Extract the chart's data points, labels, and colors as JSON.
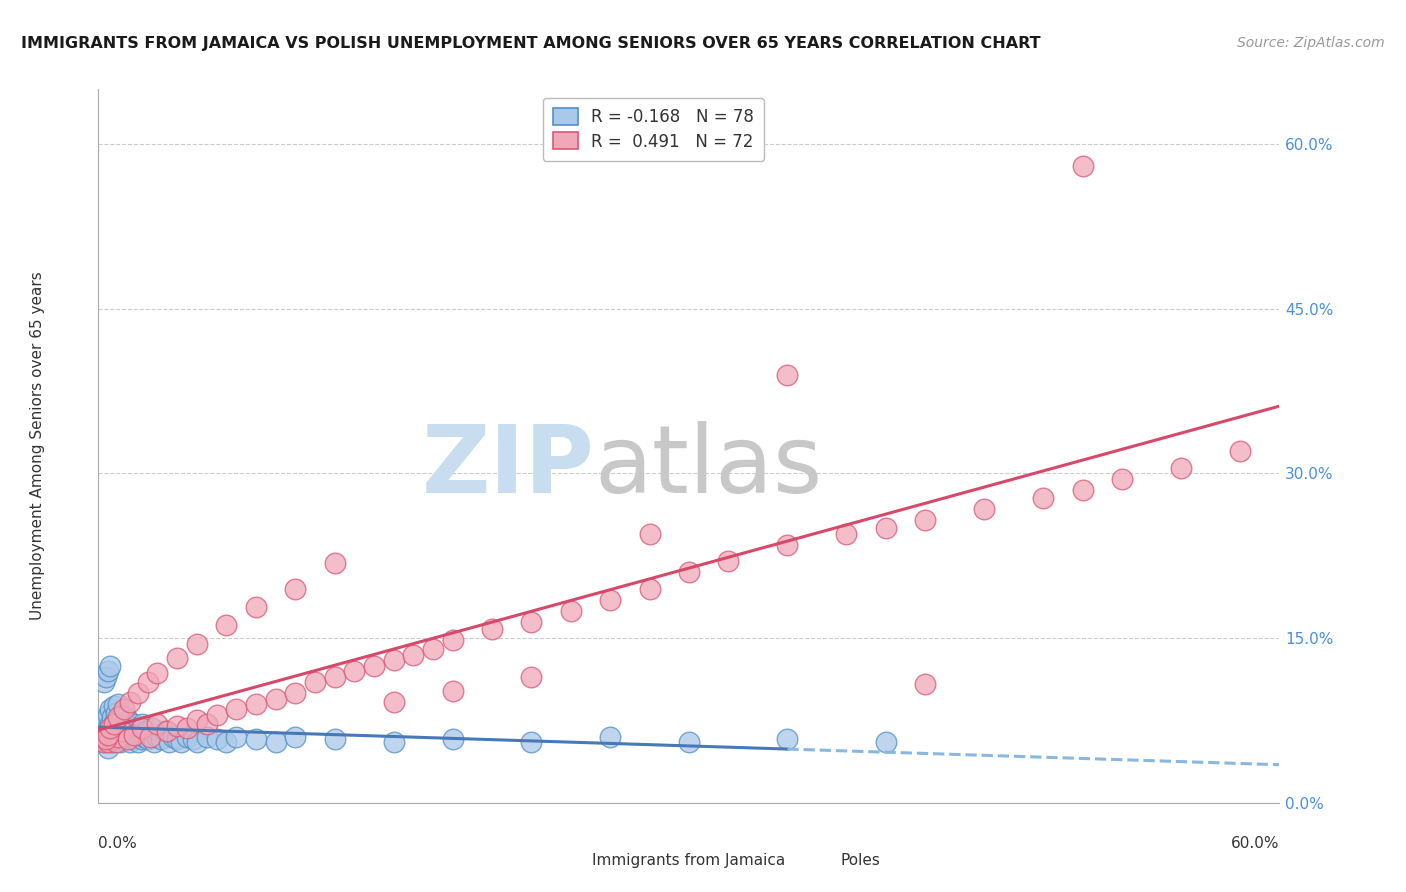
{
  "title": "IMMIGRANTS FROM JAMAICA VS POLISH UNEMPLOYMENT AMONG SENIORS OVER 65 YEARS CORRELATION CHART",
  "source": "Source: ZipAtlas.com",
  "ylabel": "Unemployment Among Seniors over 65 years",
  "legend_label1": "Immigrants from Jamaica",
  "legend_label2": "Poles",
  "r1": -0.168,
  "n1": 78,
  "r2": 0.491,
  "n2": 72,
  "color_blue_fill": "#aac8e8",
  "color_blue_edge": "#5090c8",
  "color_pink_fill": "#f0a8b8",
  "color_pink_edge": "#d85878",
  "color_line_blue_solid": "#4878b8",
  "color_line_blue_dash": "#88b8e0",
  "color_line_pink": "#d84868",
  "xlim": [
    0.0,
    0.6
  ],
  "ylim": [
    0.0,
    0.65
  ],
  "ytick_values": [
    0.0,
    0.15,
    0.3,
    0.45,
    0.6
  ],
  "ytick_labels": [
    "0.0%",
    "15.0%",
    "30.0%",
    "45.0%",
    "60.0%"
  ],
  "blue_x": [
    0.002,
    0.003,
    0.004,
    0.004,
    0.005,
    0.005,
    0.005,
    0.006,
    0.006,
    0.006,
    0.007,
    0.007,
    0.007,
    0.008,
    0.008,
    0.008,
    0.009,
    0.009,
    0.009,
    0.01,
    0.01,
    0.01,
    0.011,
    0.011,
    0.012,
    0.012,
    0.013,
    0.013,
    0.014,
    0.014,
    0.015,
    0.015,
    0.016,
    0.016,
    0.017,
    0.018,
    0.018,
    0.019,
    0.02,
    0.02,
    0.021,
    0.022,
    0.022,
    0.023,
    0.024,
    0.025,
    0.026,
    0.027,
    0.028,
    0.03,
    0.032,
    0.034,
    0.036,
    0.038,
    0.04,
    0.042,
    0.045,
    0.048,
    0.05,
    0.055,
    0.06,
    0.065,
    0.07,
    0.08,
    0.09,
    0.1,
    0.12,
    0.15,
    0.18,
    0.22,
    0.26,
    0.3,
    0.35,
    0.4,
    0.003,
    0.004,
    0.005,
    0.006
  ],
  "blue_y": [
    0.055,
    0.065,
    0.06,
    0.075,
    0.05,
    0.068,
    0.08,
    0.058,
    0.072,
    0.085,
    0.062,
    0.055,
    0.078,
    0.06,
    0.073,
    0.088,
    0.058,
    0.068,
    0.082,
    0.063,
    0.075,
    0.09,
    0.055,
    0.07,
    0.062,
    0.08,
    0.058,
    0.072,
    0.065,
    0.078,
    0.06,
    0.075,
    0.055,
    0.07,
    0.065,
    0.058,
    0.072,
    0.062,
    0.055,
    0.068,
    0.063,
    0.058,
    0.072,
    0.06,
    0.065,
    0.058,
    0.062,
    0.068,
    0.055,
    0.06,
    0.058,
    0.065,
    0.055,
    0.06,
    0.058,
    0.055,
    0.06,
    0.058,
    0.055,
    0.06,
    0.058,
    0.055,
    0.06,
    0.058,
    0.055,
    0.06,
    0.058,
    0.055,
    0.058,
    0.055,
    0.06,
    0.055,
    0.058,
    0.055,
    0.11,
    0.115,
    0.12,
    0.125
  ],
  "pink_x": [
    0.003,
    0.004,
    0.005,
    0.006,
    0.007,
    0.008,
    0.009,
    0.01,
    0.012,
    0.015,
    0.018,
    0.022,
    0.026,
    0.03,
    0.035,
    0.04,
    0.045,
    0.05,
    0.055,
    0.06,
    0.07,
    0.08,
    0.09,
    0.1,
    0.11,
    0.12,
    0.13,
    0.14,
    0.15,
    0.16,
    0.17,
    0.18,
    0.2,
    0.22,
    0.24,
    0.26,
    0.28,
    0.3,
    0.32,
    0.35,
    0.38,
    0.4,
    0.42,
    0.45,
    0.48,
    0.5,
    0.52,
    0.55,
    0.58,
    0.004,
    0.005,
    0.006,
    0.008,
    0.01,
    0.013,
    0.016,
    0.02,
    0.025,
    0.03,
    0.04,
    0.05,
    0.065,
    0.08,
    0.1,
    0.12,
    0.15,
    0.18,
    0.22,
    0.28,
    0.35,
    0.42,
    0.5
  ],
  "pink_y": [
    0.055,
    0.06,
    0.055,
    0.065,
    0.058,
    0.062,
    0.055,
    0.06,
    0.065,
    0.058,
    0.062,
    0.068,
    0.06,
    0.072,
    0.065,
    0.07,
    0.068,
    0.075,
    0.072,
    0.08,
    0.085,
    0.09,
    0.095,
    0.1,
    0.11,
    0.115,
    0.12,
    0.125,
    0.13,
    0.135,
    0.14,
    0.148,
    0.158,
    0.165,
    0.175,
    0.185,
    0.195,
    0.21,
    0.22,
    0.235,
    0.245,
    0.25,
    0.258,
    0.268,
    0.278,
    0.285,
    0.295,
    0.305,
    0.32,
    0.058,
    0.062,
    0.068,
    0.072,
    0.078,
    0.085,
    0.092,
    0.1,
    0.11,
    0.118,
    0.132,
    0.145,
    0.162,
    0.178,
    0.195,
    0.218,
    0.092,
    0.102,
    0.115,
    0.245,
    0.39,
    0.108,
    0.58
  ]
}
